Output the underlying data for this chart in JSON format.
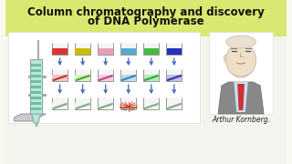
{
  "title_line1": "Column chromatography and discovery",
  "title_line2": "of DNA Polymerase",
  "title_fontsize": 8.5,
  "title_color": "#111111",
  "bg_color_top": "#dde88a",
  "bg_color_bottom": "#f8f8f0",
  "tube_colors_row1": [
    "#dd3333",
    "#ccbb00",
    "#e8a0b8",
    "#55aad0",
    "#44bb44",
    "#2233bb"
  ],
  "tube_colors_row2_bg": [
    "#f0c8c8",
    "#d8f0c0",
    "#f0d0e0",
    "#c0ddf0",
    "#b8eab8",
    "#c0c0e8"
  ],
  "stripe_colors_row2": [
    "#cc3333",
    "#44aa44",
    "#cc4488",
    "#3388bb",
    "#33aa44",
    "#3333aa"
  ],
  "tube_colors_row3_bg": [
    "#f0f0f0",
    "#f0f0f0",
    "#f0f0f0",
    "#f0f0f0",
    "#f0f0f0",
    "#f0f0f0"
  ],
  "stripe_colors_row3": [
    "#88aa88",
    "#88aa88",
    "#88aa88",
    "#88aa88",
    "#88aa88",
    "#88aa88"
  ],
  "highlight_col": 3,
  "arthur_text": "Arthur Kornberg.",
  "arrow_color": "#4466bb",
  "white_panel": "#ffffff",
  "column_fill": "#b8e8d8",
  "column_band": "#55aa88"
}
